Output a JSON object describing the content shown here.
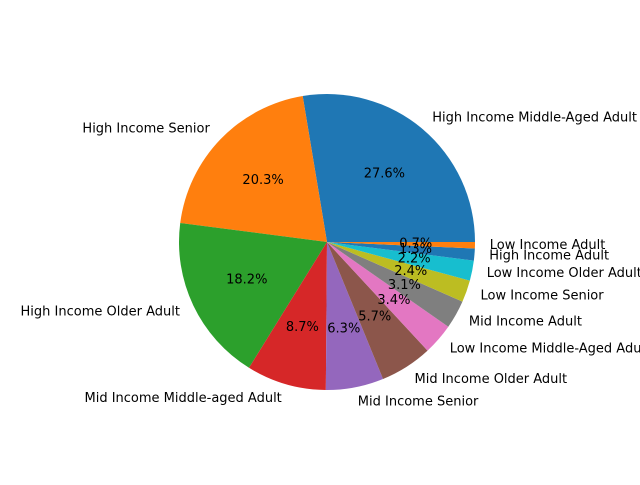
{
  "chart_data": {
    "type": "pie",
    "start_angle_deg": 0,
    "direction": "counterclockwise",
    "slices": [
      {
        "label": "High Income Middle-Aged Adult",
        "value": 27.6,
        "pct_label": "27.6%",
        "color": "#1f77b4"
      },
      {
        "label": "High Income Senior",
        "value": 20.3,
        "pct_label": "20.3%",
        "color": "#ff7f0e"
      },
      {
        "label": "High Income Older Adult",
        "value": 18.2,
        "pct_label": "18.2%",
        "color": "#2ca02c"
      },
      {
        "label": "Mid Income Middle-aged Adult",
        "value": 8.7,
        "pct_label": "8.7%",
        "color": "#d62728"
      },
      {
        "label": "Mid Income Senior",
        "value": 6.3,
        "pct_label": "6.3%",
        "color": "#9467bd"
      },
      {
        "label": "Mid Income Older Adult",
        "value": 5.7,
        "pct_label": "5.7%",
        "color": "#8c564b"
      },
      {
        "label": "Low Income Middle-Aged Adult",
        "value": 3.4,
        "pct_label": "3.4%",
        "color": "#e377c2"
      },
      {
        "label": "Mid Income Adult",
        "value": 3.1,
        "pct_label": "3.1%",
        "color": "#7f7f7f"
      },
      {
        "label": "Low Income Senior",
        "value": 2.4,
        "pct_label": "2.4%",
        "color": "#bcbd22"
      },
      {
        "label": "Low Income Older Adult",
        "value": 2.2,
        "pct_label": "2.2%",
        "color": "#17becf"
      },
      {
        "label": "High Income Adult",
        "value": 1.3,
        "pct_label": "1.3%",
        "color": "#1f77b4"
      },
      {
        "label": "Low Income Adult",
        "value": 0.7,
        "pct_label": "0.7%",
        "color": "#ff7f0e"
      }
    ]
  }
}
